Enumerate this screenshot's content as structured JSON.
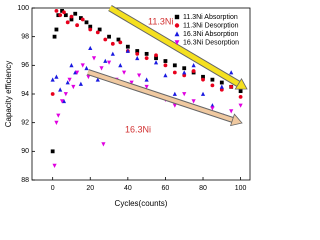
{
  "chart_data": {
    "type": "scatter",
    "xlabel": "Cycles(counts)",
    "ylabel": "Capacity efficiency",
    "annotations": [
      "11.3Ni",
      "16.3Ni"
    ],
    "xlim": [
      -11,
      105
    ],
    "ylim": [
      88,
      100
    ],
    "xticks": [
      0,
      20,
      40,
      60,
      80,
      100
    ],
    "yticks": [
      88,
      90,
      92,
      94,
      96,
      98,
      100
    ],
    "legend": "upper right",
    "series": [
      {
        "name": "11.3Ni Absorption",
        "color": "#000000",
        "marker": "square",
        "x": [
          0,
          1,
          2,
          3,
          5,
          7,
          10,
          12,
          15,
          18,
          20,
          25,
          30,
          35,
          40,
          45,
          50,
          55,
          60,
          65,
          70,
          75,
          80,
          85,
          90,
          95,
          100
        ],
        "values": [
          90,
          98,
          98.5,
          99.5,
          99.8,
          99.5,
          99.2,
          99.6,
          99.3,
          99,
          98.7,
          98.5,
          98,
          97.8,
          97.3,
          97,
          96.8,
          96.5,
          96.3,
          96,
          95.8,
          95.5,
          95.2,
          95,
          94.8,
          94.5,
          94.2
        ]
      },
      {
        "name": "11.3Ni Desorption",
        "color": "#e8001c",
        "marker": "circle",
        "x": [
          0,
          2,
          4,
          6,
          8,
          10,
          13,
          16,
          20,
          24,
          28,
          32,
          36,
          40,
          45,
          50,
          55,
          60,
          65,
          70,
          75,
          80,
          85,
          90,
          95,
          100
        ],
        "values": [
          94,
          99.8,
          99.5,
          99.7,
          99,
          99.4,
          98.8,
          99.2,
          98.5,
          98.3,
          97.8,
          97.5,
          97.6,
          97,
          96.8,
          96.5,
          96.7,
          96,
          95.5,
          95.3,
          95.6,
          95,
          94.6,
          94.3,
          94.5,
          93.8
        ]
      },
      {
        "name": "16.3Ni Absorption",
        "color": "#1a1ae0",
        "marker": "triangle-up",
        "x": [
          0,
          2,
          4,
          6,
          8,
          10,
          12,
          15,
          18,
          20,
          24,
          28,
          32,
          36,
          40,
          45,
          50,
          55,
          60,
          65,
          70,
          75,
          80,
          85,
          90,
          95,
          98
        ],
        "values": [
          95,
          95.2,
          94.3,
          93.5,
          94.8,
          96,
          95.5,
          94.7,
          95.8,
          97.2,
          95,
          96.3,
          96.8,
          96,
          97,
          96.5,
          95,
          96.2,
          95.3,
          94,
          95.5,
          96,
          94,
          93.2,
          94.5,
          95.5,
          94.8
        ]
      },
      {
        "name": "16.3Ni Desorption",
        "color": "#e000e0",
        "marker": "triangle-down",
        "x": [
          1,
          2,
          3,
          5,
          7,
          9,
          11,
          13,
          16,
          19,
          22,
          26,
          27,
          30,
          34,
          38,
          42,
          46,
          50,
          55,
          60,
          65,
          70,
          75,
          80,
          85,
          90,
          95,
          100
        ],
        "values": [
          89,
          92,
          92.5,
          93.5,
          94,
          95,
          94.5,
          95.5,
          96,
          95.2,
          96.5,
          95.8,
          90.5,
          96.2,
          95,
          95.5,
          94.8,
          95.3,
          94.5,
          94,
          93.6,
          93.2,
          94,
          93.5,
          92.8,
          93,
          92.5,
          92.8,
          93.2
        ]
      }
    ]
  }
}
